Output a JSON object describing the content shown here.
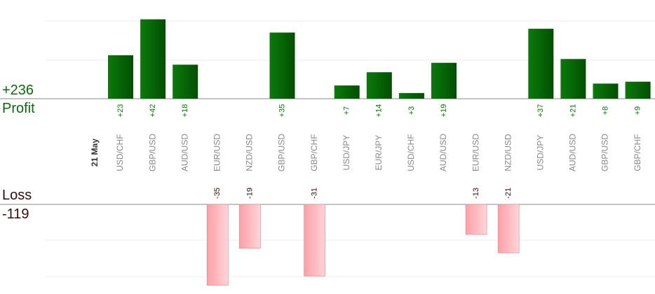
{
  "chart_data": {
    "type": "bar",
    "date_label": "21 May",
    "profit": {
      "total_text": "+236",
      "label": "Profit",
      "color": "#0a6e0a"
    },
    "loss": {
      "total_text": "-119",
      "label": "Loss",
      "color": "#ffb3b3"
    },
    "categories": [
      "USD/CHF",
      "GBP/USD",
      "AUD/USD",
      "EUR/USD",
      "NZD/USD",
      "GBP/USD",
      "GBP/CHF",
      "USD/JPY",
      "EUR/JPY",
      "USD/CHF",
      "AUD/USD",
      "EUR/USD",
      "NZD/USD",
      "USD/JPY",
      "AUD/USD",
      "GBP/USD",
      "GBP/CHF"
    ],
    "values": [
      23,
      42,
      18,
      -35,
      -19,
      35,
      -31,
      7,
      14,
      3,
      19,
      -13,
      -21,
      37,
      21,
      8,
      9
    ],
    "value_labels": [
      "+23",
      "+42",
      "+18",
      "-35",
      "-19",
      "+35",
      "-31",
      "+7",
      "+14",
      "+3",
      "+19",
      "-13",
      "-21",
      "+37",
      "+21",
      "+8",
      "+9"
    ],
    "grid": true
  }
}
